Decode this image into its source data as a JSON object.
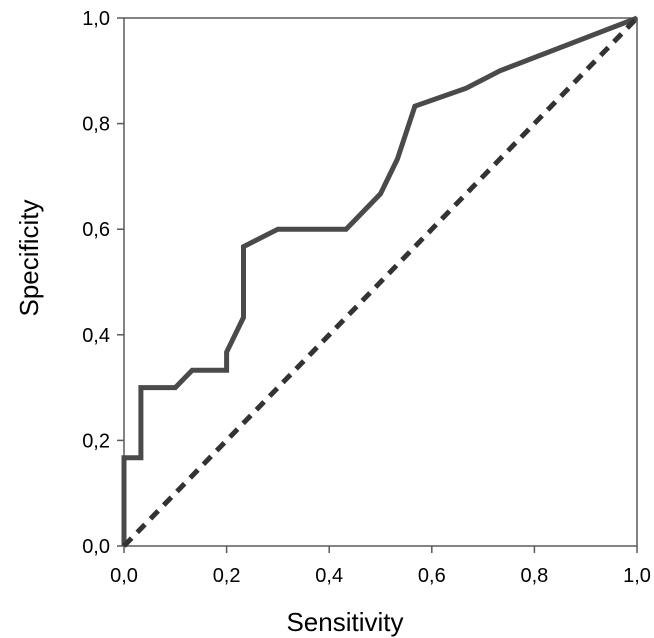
{
  "chart_data": {
    "type": "line",
    "title": "",
    "xlabel": "Sensitivity",
    "ylabel": "Specificity",
    "xlim": [
      0,
      1
    ],
    "ylim": [
      0,
      1
    ],
    "grid": false,
    "x_ticks": [
      "0,0",
      "0,2",
      "0,4",
      "0,6",
      "0,8",
      "1,0"
    ],
    "y_ticks": [
      "0,0",
      "0,2",
      "0,4",
      "0,6",
      "0,8",
      "1,0"
    ],
    "series": [
      {
        "style": "solid",
        "color": "#4a4a4a",
        "x": [
          0,
          0,
          0.033,
          0.033,
          0.1,
          0.133,
          0.2,
          0.2,
          0.233,
          0.233,
          0.3,
          0.433,
          0.5,
          0.533,
          0.567,
          0.667,
          0.733,
          1.0
        ],
        "y": [
          0,
          0.167,
          0.167,
          0.3,
          0.3,
          0.333,
          0.333,
          0.367,
          0.433,
          0.567,
          0.6,
          0.6,
          0.667,
          0.733,
          0.833,
          0.867,
          0.9,
          1.0
        ]
      },
      {
        "style": "dashed",
        "color": "#333333",
        "x": [
          0,
          1
        ],
        "y": [
          0,
          1
        ]
      }
    ]
  }
}
